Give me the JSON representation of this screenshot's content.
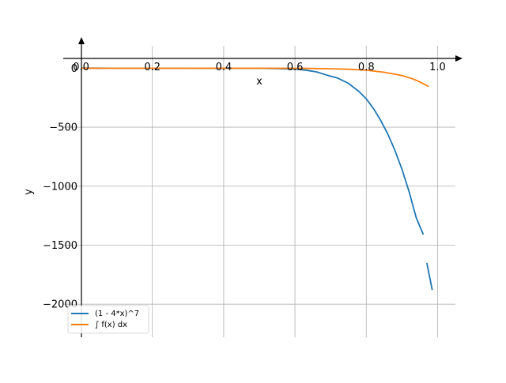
{
  "chart_data": {
    "type": "line",
    "title": "",
    "xlabel": "x",
    "ylabel": "y",
    "xlim": [
      -0.05,
      1.05
    ],
    "ylim": [
      -2280,
      190
    ],
    "x_ticks": [
      0.0,
      0.2,
      0.4,
      0.6,
      0.8,
      1.0
    ],
    "x_tick_labels": [
      "0.0",
      "0.2",
      "0.4",
      "0.6",
      "0.8",
      "1.0"
    ],
    "y_ticks": [
      0,
      -500,
      -1000,
      -1500,
      -2000
    ],
    "y_tick_labels": [
      "0",
      "−500",
      "−1000",
      "−1500",
      "−2000"
    ],
    "grid": true,
    "legend_position": "lower-left",
    "series": [
      {
        "name": "(1 - 4*x)^7",
        "color": "#1f77b4",
        "segments": [
          {
            "x": [
              0.0,
              0.1,
              0.2,
              0.3,
              0.4,
              0.5,
              0.55,
              0.6,
              0.63,
              0.66,
              0.69,
              0.72,
              0.75,
              0.78,
              0.8,
              0.82,
              0.84,
              0.86,
              0.88,
              0.9,
              0.92,
              0.94,
              0.96
            ],
            "y": [
              1,
              0,
              0,
              0,
              -1,
              -1,
              -3,
              -8,
              -16,
              -31,
              -59,
              -84,
              -128,
              -199,
              -260,
              -341,
              -440,
              -555,
              -693,
              -856,
              -1046,
              -1266,
              -1410
            ]
          },
          {
            "x": [
              0.97,
              0.985
            ],
            "y": [
              -1650,
              -1880
            ]
          }
        ]
      },
      {
        "name": "∫ f(x) dx",
        "color": "#ff7f0e",
        "segments": [
          {
            "x": [
              0.0,
              0.2,
              0.4,
              0.5,
              0.6,
              0.65,
              0.7,
              0.75,
              0.8,
              0.85,
              0.9,
              0.93,
              0.95,
              0.975
            ],
            "y": [
              0,
              0,
              0,
              0,
              -1,
              -2,
              -5,
              -9,
              -17,
              -34,
              -62,
              -90,
              -116,
              -155
            ]
          }
        ]
      }
    ]
  }
}
